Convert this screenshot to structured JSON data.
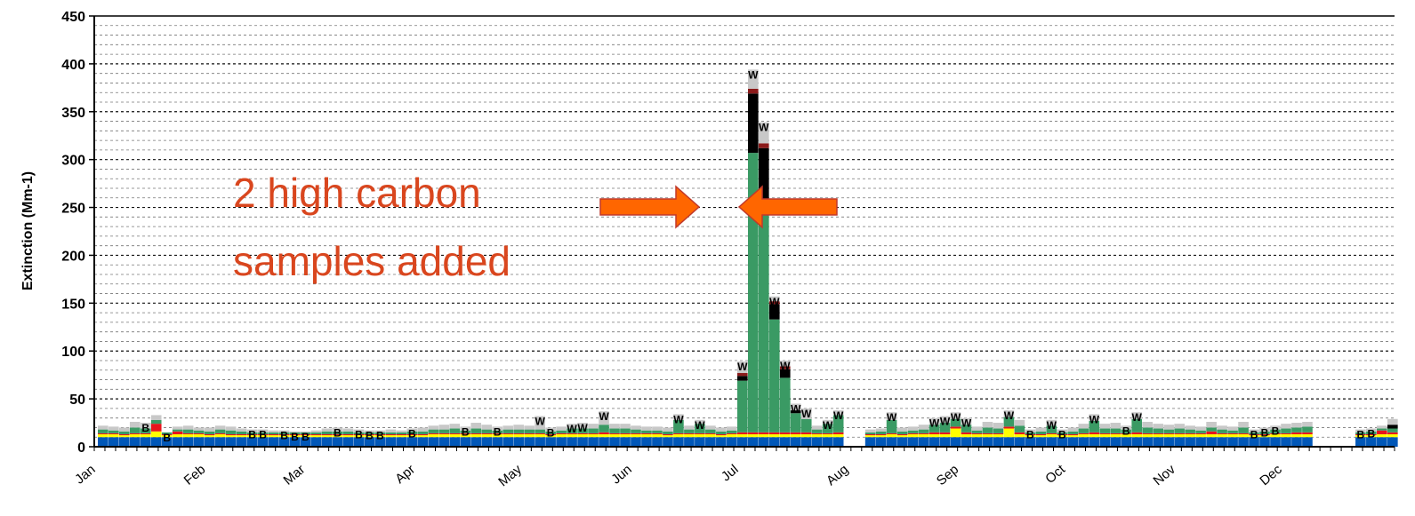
{
  "chart_data": {
    "type": "bar",
    "stacked": true,
    "title": "",
    "xlabel": "",
    "ylabel": "Extinction (Mm-1)",
    "ylim": [
      0,
      450
    ],
    "yticks": [
      0,
      50,
      100,
      150,
      200,
      250,
      300,
      350,
      400,
      450
    ],
    "grid": true,
    "months": [
      "Jan",
      "Feb",
      "Mar",
      "Apr",
      "May",
      "Jun",
      "Jul",
      "Aug",
      "Sep",
      "Oct",
      "Nov",
      "Dec"
    ],
    "colors": {
      "sulfate": "#ffff00",
      "nitrate": "#e8141c",
      "organic": "#3a9a64",
      "lac": "#000000",
      "soil": "#8b1a1a",
      "cm": "#c8c8c8",
      "rayleigh": "#0057b8"
    },
    "annotation": {
      "line1": "2 high carbon",
      "line2": "samples added"
    },
    "samples": [
      {
        "day": 1,
        "total": 22,
        "sulfate": 3,
        "nitrate": 1,
        "organic": 4
      },
      {
        "day": 4,
        "total": 21,
        "sulfate": 3,
        "nitrate": 1,
        "organic": 3
      },
      {
        "day": 7,
        "total": 20,
        "sulfate": 2,
        "nitrate": 1,
        "organic": 3
      },
      {
        "day": 10,
        "total": 26,
        "sulfate": 3,
        "nitrate": 1,
        "organic": 6
      },
      {
        "day": 13,
        "total": 25,
        "sulfate": 3,
        "nitrate": 1,
        "organic": 5,
        "flag": "B"
      },
      {
        "day": 16,
        "total": 33,
        "sulfate": 6,
        "nitrate": 8,
        "organic": 4
      },
      {
        "day": 19,
        "total": 15,
        "sulfate": 2,
        "nitrate": 1,
        "organic": 2,
        "flag": "B"
      },
      {
        "day": 22,
        "total": 21,
        "sulfate": 3,
        "nitrate": 3,
        "organic": 2
      },
      {
        "day": 25,
        "total": 22,
        "sulfate": 3,
        "nitrate": 1,
        "organic": 4
      },
      {
        "day": 28,
        "total": 20,
        "sulfate": 3,
        "nitrate": 1,
        "organic": 3
      },
      {
        "day": 31,
        "total": 20,
        "sulfate": 2,
        "nitrate": 1,
        "organic": 3
      },
      {
        "day": 34,
        "total": 22,
        "sulfate": 3,
        "nitrate": 1,
        "organic": 4
      },
      {
        "day": 37,
        "total": 21,
        "sulfate": 2,
        "nitrate": 1,
        "organic": 4
      },
      {
        "day": 40,
        "total": 19,
        "sulfate": 2,
        "nitrate": 1,
        "organic": 3
      },
      {
        "day": 43,
        "total": 18,
        "sulfate": 2,
        "nitrate": 1,
        "organic": 2,
        "flag": "B"
      },
      {
        "day": 46,
        "total": 18,
        "sulfate": 2,
        "nitrate": 1,
        "organic": 2,
        "flag": "B"
      },
      {
        "day": 49,
        "total": 17,
        "sulfate": 2,
        "nitrate": 1,
        "organic": 2
      },
      {
        "day": 52,
        "total": 17,
        "sulfate": 2,
        "nitrate": 1,
        "organic": 2,
        "flag": "B"
      },
      {
        "day": 55,
        "total": 16,
        "sulfate": 2,
        "nitrate": 1,
        "organic": 2,
        "flag": "B"
      },
      {
        "day": 58,
        "total": 16,
        "sulfate": 2,
        "nitrate": 1,
        "organic": 2,
        "flag": "B"
      },
      {
        "day": 61,
        "total": 17,
        "sulfate": 2,
        "nitrate": 1,
        "organic": 2
      },
      {
        "day": 64,
        "total": 19,
        "sulfate": 2,
        "nitrate": 1,
        "organic": 3
      },
      {
        "day": 67,
        "total": 20,
        "sulfate": 2,
        "nitrate": 1,
        "organic": 3,
        "flag": "B"
      },
      {
        "day": 70,
        "total": 19,
        "sulfate": 2,
        "nitrate": 1,
        "organic": 3
      },
      {
        "day": 73,
        "total": 18,
        "sulfate": 2,
        "nitrate": 1,
        "organic": 2,
        "flag": "B"
      },
      {
        "day": 76,
        "total": 17,
        "sulfate": 2,
        "nitrate": 1,
        "organic": 2,
        "flag": "B"
      },
      {
        "day": 79,
        "total": 17,
        "sulfate": 2,
        "nitrate": 1,
        "organic": 2,
        "flag": "B"
      },
      {
        "day": 82,
        "total": 18,
        "sulfate": 2,
        "nitrate": 1,
        "organic": 2
      },
      {
        "day": 85,
        "total": 17,
        "sulfate": 2,
        "nitrate": 1,
        "organic": 2
      },
      {
        "day": 88,
        "total": 19,
        "sulfate": 2,
        "nitrate": 1,
        "organic": 3,
        "flag": "B"
      },
      {
        "day": 91,
        "total": 20,
        "sulfate": 2,
        "nitrate": 1,
        "organic": 3
      },
      {
        "day": 94,
        "total": 22,
        "sulfate": 3,
        "nitrate": 1,
        "organic": 4
      },
      {
        "day": 97,
        "total": 23,
        "sulfate": 3,
        "nitrate": 1,
        "organic": 4
      },
      {
        "day": 100,
        "total": 24,
        "sulfate": 3,
        "nitrate": 1,
        "organic": 5
      },
      {
        "day": 103,
        "total": 21,
        "sulfate": 3,
        "nitrate": 1,
        "organic": 3,
        "flag": "B"
      },
      {
        "day": 106,
        "total": 25,
        "sulfate": 3,
        "nitrate": 1,
        "organic": 5
      },
      {
        "day": 109,
        "total": 23,
        "sulfate": 3,
        "nitrate": 1,
        "organic": 4
      },
      {
        "day": 112,
        "total": 21,
        "sulfate": 3,
        "nitrate": 1,
        "organic": 3,
        "flag": "B"
      },
      {
        "day": 115,
        "total": 22,
        "sulfate": 3,
        "nitrate": 1,
        "organic": 4
      },
      {
        "day": 118,
        "total": 23,
        "sulfate": 3,
        "nitrate": 1,
        "organic": 4
      },
      {
        "day": 121,
        "total": 22,
        "sulfate": 3,
        "nitrate": 1,
        "organic": 4
      },
      {
        "day": 124,
        "total": 36,
        "sulfate": 3,
        "nitrate": 1,
        "organic": 4,
        "cm": 14,
        "flag": "W"
      },
      {
        "day": 127,
        "total": 20,
        "sulfate": 2,
        "nitrate": 1,
        "organic": 3,
        "flag": "B"
      },
      {
        "day": 130,
        "total": 21,
        "sulfate": 3,
        "nitrate": 1,
        "organic": 3
      },
      {
        "day": 133,
        "total": 24,
        "sulfate": 3,
        "nitrate": 1,
        "organic": 5,
        "flag": "W"
      },
      {
        "day": 136,
        "total": 25,
        "sulfate": 3,
        "nitrate": 1,
        "organic": 5,
        "flag": "W"
      },
      {
        "day": 139,
        "total": 24,
        "sulfate": 3,
        "nitrate": 1,
        "organic": 5
      },
      {
        "day": 142,
        "total": 40,
        "sulfate": 3,
        "nitrate": 2,
        "organic": 8,
        "cm": 14,
        "flag": "W"
      },
      {
        "day": 145,
        "total": 24,
        "sulfate": 3,
        "nitrate": 1,
        "organic": 5
      },
      {
        "day": 148,
        "total": 24,
        "sulfate": 3,
        "nitrate": 1,
        "organic": 5
      },
      {
        "day": 151,
        "total": 22,
        "sulfate": 3,
        "nitrate": 1,
        "organic": 4
      },
      {
        "day": 154,
        "total": 21,
        "sulfate": 3,
        "nitrate": 1,
        "organic": 3
      },
      {
        "day": 157,
        "total": 21,
        "sulfate": 3,
        "nitrate": 1,
        "organic": 3
      },
      {
        "day": 160,
        "total": 20,
        "sulfate": 2,
        "nitrate": 1,
        "organic": 3
      },
      {
        "day": 163,
        "total": 34,
        "sulfate": 3,
        "nitrate": 1,
        "organic": 14,
        "flag": "W"
      },
      {
        "day": 166,
        "total": 22,
        "sulfate": 3,
        "nitrate": 1,
        "organic": 4
      },
      {
        "day": 169,
        "total": 28,
        "sulfate": 3,
        "nitrate": 1,
        "organic": 10,
        "flag": "W"
      },
      {
        "day": 172,
        "total": 22,
        "sulfate": 3,
        "nitrate": 1,
        "organic": 4
      },
      {
        "day": 175,
        "total": 20,
        "sulfate": 2,
        "nitrate": 1,
        "organic": 3
      },
      {
        "day": 178,
        "total": 21,
        "sulfate": 3,
        "nitrate": 1,
        "organic": 3
      },
      {
        "day": 181,
        "total": 95,
        "sulfate": 3,
        "nitrate": 2,
        "organic": 54,
        "lac": 5,
        "soil": 3,
        "cm": 12,
        "flag": "W"
      },
      {
        "day": 184,
        "total": 400,
        "sulfate": 3,
        "nitrate": 2,
        "organic": 292,
        "lac": 62,
        "soil": 5,
        "cm": 20,
        "flag": "W"
      },
      {
        "day": 187,
        "total": 345,
        "sulfate": 3,
        "nitrate": 2,
        "organic": 235,
        "lac": 62,
        "soil": 5,
        "cm": 22,
        "flag": "W"
      },
      {
        "day": 190,
        "total": 160,
        "sulfate": 3,
        "nitrate": 2,
        "organic": 118,
        "lac": 16,
        "soil": 3,
        "cm": 5,
        "flag": "W"
      },
      {
        "day": 193,
        "total": 92,
        "sulfate": 3,
        "nitrate": 2,
        "organic": 57,
        "lac": 9,
        "soil": 3,
        "cm": 6,
        "flag": "W"
      },
      {
        "day": 196,
        "total": 45,
        "sulfate": 3,
        "nitrate": 2,
        "organic": 20,
        "lac": 3,
        "flag": "W"
      },
      {
        "day": 199,
        "total": 40,
        "sulfate": 3,
        "nitrate": 2,
        "organic": 14,
        "flag": "W"
      },
      {
        "day": 202,
        "total": 22,
        "sulfate": 3,
        "nitrate": 1,
        "organic": 4
      },
      {
        "day": 205,
        "total": 28,
        "sulfate": 3,
        "nitrate": 1,
        "organic": 10,
        "flag": "W"
      },
      {
        "day": 208,
        "total": 38,
        "sulfate": 3,
        "nitrate": 2,
        "organic": 18,
        "flag": "W"
      },
      {
        "day": 217,
        "total": 18,
        "sulfate": 2,
        "nitrate": 1,
        "organic": 2
      },
      {
        "day": 220,
        "total": 19,
        "sulfate": 2,
        "nitrate": 1,
        "organic": 3
      },
      {
        "day": 223,
        "total": 36,
        "sulfate": 3,
        "nitrate": 1,
        "organic": 14,
        "flag": "W"
      },
      {
        "day": 226,
        "total": 20,
        "sulfate": 2,
        "nitrate": 1,
        "organic": 3
      },
      {
        "day": 229,
        "total": 21,
        "sulfate": 3,
        "nitrate": 1,
        "organic": 3
      },
      {
        "day": 232,
        "total": 23,
        "sulfate": 3,
        "nitrate": 1,
        "organic": 4
      },
      {
        "day": 235,
        "total": 30,
        "sulfate": 3,
        "nitrate": 2,
        "organic": 8,
        "flag": "W"
      },
      {
        "day": 238,
        "total": 32,
        "sulfate": 3,
        "nitrate": 2,
        "organic": 10,
        "flag": "W"
      },
      {
        "day": 241,
        "total": 36,
        "sulfate": 9,
        "nitrate": 2,
        "organic": 8,
        "flag": "W"
      },
      {
        "day": 244,
        "total": 30,
        "sulfate": 3,
        "nitrate": 2,
        "organic": 8,
        "flag": "W"
      },
      {
        "day": 247,
        "total": 21,
        "sulfate": 3,
        "nitrate": 1,
        "organic": 3
      },
      {
        "day": 250,
        "total": 26,
        "sulfate": 3,
        "nitrate": 1,
        "organic": 6
      },
      {
        "day": 253,
        "total": 25,
        "sulfate": 3,
        "nitrate": 1,
        "organic": 5
      },
      {
        "day": 256,
        "total": 38,
        "sulfate": 9,
        "nitrate": 2,
        "organic": 10,
        "flag": "W"
      },
      {
        "day": 259,
        "total": 28,
        "sulfate": 3,
        "nitrate": 2,
        "organic": 7
      },
      {
        "day": 262,
        "total": 18,
        "sulfate": 2,
        "nitrate": 1,
        "organic": 2,
        "flag": "B"
      },
      {
        "day": 265,
        "total": 20,
        "sulfate": 2,
        "nitrate": 1,
        "organic": 3
      },
      {
        "day": 268,
        "total": 28,
        "sulfate": 3,
        "nitrate": 1,
        "organic": 8,
        "flag": "W"
      },
      {
        "day": 271,
        "total": 18,
        "sulfate": 2,
        "nitrate": 1,
        "organic": 2,
        "flag": "B"
      },
      {
        "day": 274,
        "total": 20,
        "sulfate": 2,
        "nitrate": 1,
        "organic": 3
      },
      {
        "day": 277,
        "total": 24,
        "sulfate": 3,
        "nitrate": 1,
        "organic": 5
      },
      {
        "day": 280,
        "total": 34,
        "sulfate": 3,
        "nitrate": 2,
        "organic": 12,
        "flag": "W"
      },
      {
        "day": 283,
        "total": 24,
        "sulfate": 3,
        "nitrate": 1,
        "organic": 5
      },
      {
        "day": 286,
        "total": 25,
        "sulfate": 3,
        "nitrate": 1,
        "organic": 5
      },
      {
        "day": 289,
        "total": 22,
        "sulfate": 3,
        "nitrate": 1,
        "organic": 4,
        "flag": "B"
      },
      {
        "day": 292,
        "total": 36,
        "sulfate": 3,
        "nitrate": 2,
        "organic": 14,
        "flag": "W"
      },
      {
        "day": 295,
        "total": 26,
        "sulfate": 3,
        "nitrate": 1,
        "organic": 6
      },
      {
        "day": 298,
        "total": 24,
        "sulfate": 3,
        "nitrate": 1,
        "organic": 5
      },
      {
        "day": 301,
        "total": 23,
        "sulfate": 3,
        "nitrate": 1,
        "organic": 4
      },
      {
        "day": 304,
        "total": 24,
        "sulfate": 3,
        "nitrate": 1,
        "organic": 5
      },
      {
        "day": 307,
        "total": 22,
        "sulfate": 3,
        "nitrate": 1,
        "organic": 4
      },
      {
        "day": 310,
        "total": 21,
        "sulfate": 3,
        "nitrate": 1,
        "organic": 3
      },
      {
        "day": 313,
        "total": 26,
        "sulfate": 3,
        "nitrate": 3,
        "organic": 4
      },
      {
        "day": 316,
        "total": 22,
        "sulfate": 3,
        "nitrate": 1,
        "organic": 4
      },
      {
        "day": 319,
        "total": 21,
        "sulfate": 3,
        "nitrate": 1,
        "organic": 3
      },
      {
        "day": 322,
        "total": 26,
        "sulfate": 3,
        "nitrate": 1,
        "organic": 6
      },
      {
        "day": 325,
        "total": 18,
        "sulfate": 2,
        "nitrate": 1,
        "organic": 2,
        "flag": "B"
      },
      {
        "day": 328,
        "total": 20,
        "sulfate": 2,
        "nitrate": 1,
        "organic": 3,
        "flag": "B"
      },
      {
        "day": 331,
        "total": 22,
        "sulfate": 3,
        "nitrate": 1,
        "organic": 4,
        "flag": "B"
      },
      {
        "day": 334,
        "total": 24,
        "sulfate": 3,
        "nitrate": 1,
        "organic": 5
      },
      {
        "day": 337,
        "total": 25,
        "sulfate": 3,
        "nitrate": 2,
        "organic": 5
      },
      {
        "day": 340,
        "total": 26,
        "sulfate": 3,
        "nitrate": 2,
        "organic": 6
      },
      {
        "day": 355,
        "total": 18,
        "sulfate": 2,
        "nitrate": 1,
        "organic": 2,
        "flag": "B"
      },
      {
        "day": 358,
        "total": 19,
        "sulfate": 2,
        "nitrate": 1,
        "organic": 3,
        "flag": "B"
      },
      {
        "day": 361,
        "total": 22,
        "sulfate": 3,
        "nitrate": 4,
        "organic": 2
      },
      {
        "day": 364,
        "total": 29,
        "sulfate": 3,
        "nitrate": 2,
        "organic": 4,
        "lac": 4
      }
    ]
  }
}
